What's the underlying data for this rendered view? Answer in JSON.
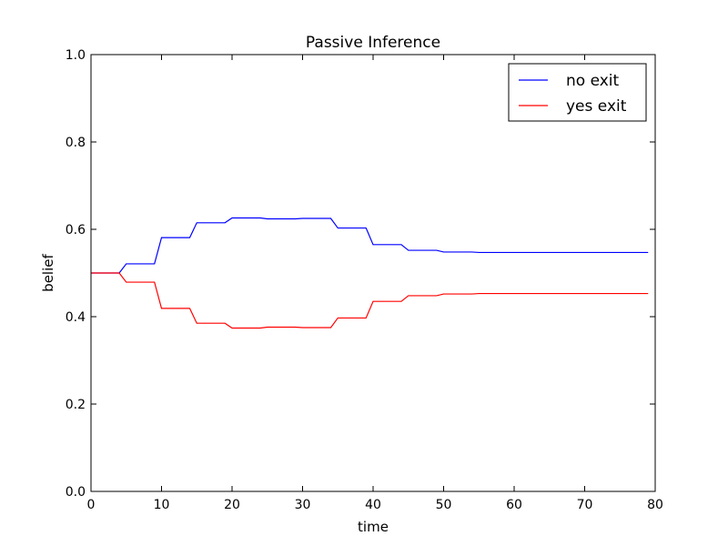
{
  "chart_data": {
    "type": "line",
    "title": "Passive Inference",
    "xlabel": "time",
    "ylabel": "belief",
    "xlim": [
      0,
      80
    ],
    "ylim": [
      0.0,
      1.0
    ],
    "xticks": [
      0,
      10,
      20,
      30,
      40,
      50,
      60,
      70,
      80
    ],
    "xtick_labels": [
      "0",
      "10",
      "20",
      "30",
      "40",
      "50",
      "60",
      "70",
      "80"
    ],
    "yticks": [
      0.0,
      0.2,
      0.4,
      0.6,
      0.8,
      1.0
    ],
    "ytick_labels": [
      "0.0",
      "0.2",
      "0.4",
      "0.6",
      "0.8",
      "1.0"
    ],
    "grid": false,
    "legend_position": "top-right",
    "series": [
      {
        "name": "no exit",
        "color": "#0000ff",
        "points": [
          [
            0,
            0.5
          ],
          [
            4,
            0.5
          ],
          [
            5,
            0.521
          ],
          [
            9,
            0.521
          ],
          [
            10,
            0.581
          ],
          [
            14,
            0.581
          ],
          [
            15,
            0.615
          ],
          [
            19,
            0.615
          ],
          [
            20,
            0.626
          ],
          [
            24,
            0.626
          ],
          [
            25,
            0.624
          ],
          [
            29,
            0.624
          ],
          [
            30,
            0.625
          ],
          [
            34,
            0.625
          ],
          [
            35,
            0.603
          ],
          [
            39,
            0.603
          ],
          [
            40,
            0.565
          ],
          [
            44,
            0.565
          ],
          [
            45,
            0.552
          ],
          [
            49,
            0.552
          ],
          [
            50,
            0.548
          ],
          [
            54,
            0.548
          ],
          [
            55,
            0.547
          ],
          [
            79,
            0.547
          ]
        ]
      },
      {
        "name": "yes exit",
        "color": "#ff0000",
        "points": [
          [
            0,
            0.5
          ],
          [
            4,
            0.5
          ],
          [
            5,
            0.479
          ],
          [
            9,
            0.479
          ],
          [
            10,
            0.419
          ],
          [
            14,
            0.419
          ],
          [
            15,
            0.385
          ],
          [
            19,
            0.385
          ],
          [
            20,
            0.374
          ],
          [
            24,
            0.374
          ],
          [
            25,
            0.376
          ],
          [
            29,
            0.376
          ],
          [
            30,
            0.375
          ],
          [
            34,
            0.375
          ],
          [
            35,
            0.397
          ],
          [
            39,
            0.397
          ],
          [
            40,
            0.435
          ],
          [
            44,
            0.435
          ],
          [
            45,
            0.448
          ],
          [
            49,
            0.448
          ],
          [
            50,
            0.452
          ],
          [
            54,
            0.452
          ],
          [
            55,
            0.453
          ],
          [
            79,
            0.453
          ]
        ]
      }
    ]
  }
}
